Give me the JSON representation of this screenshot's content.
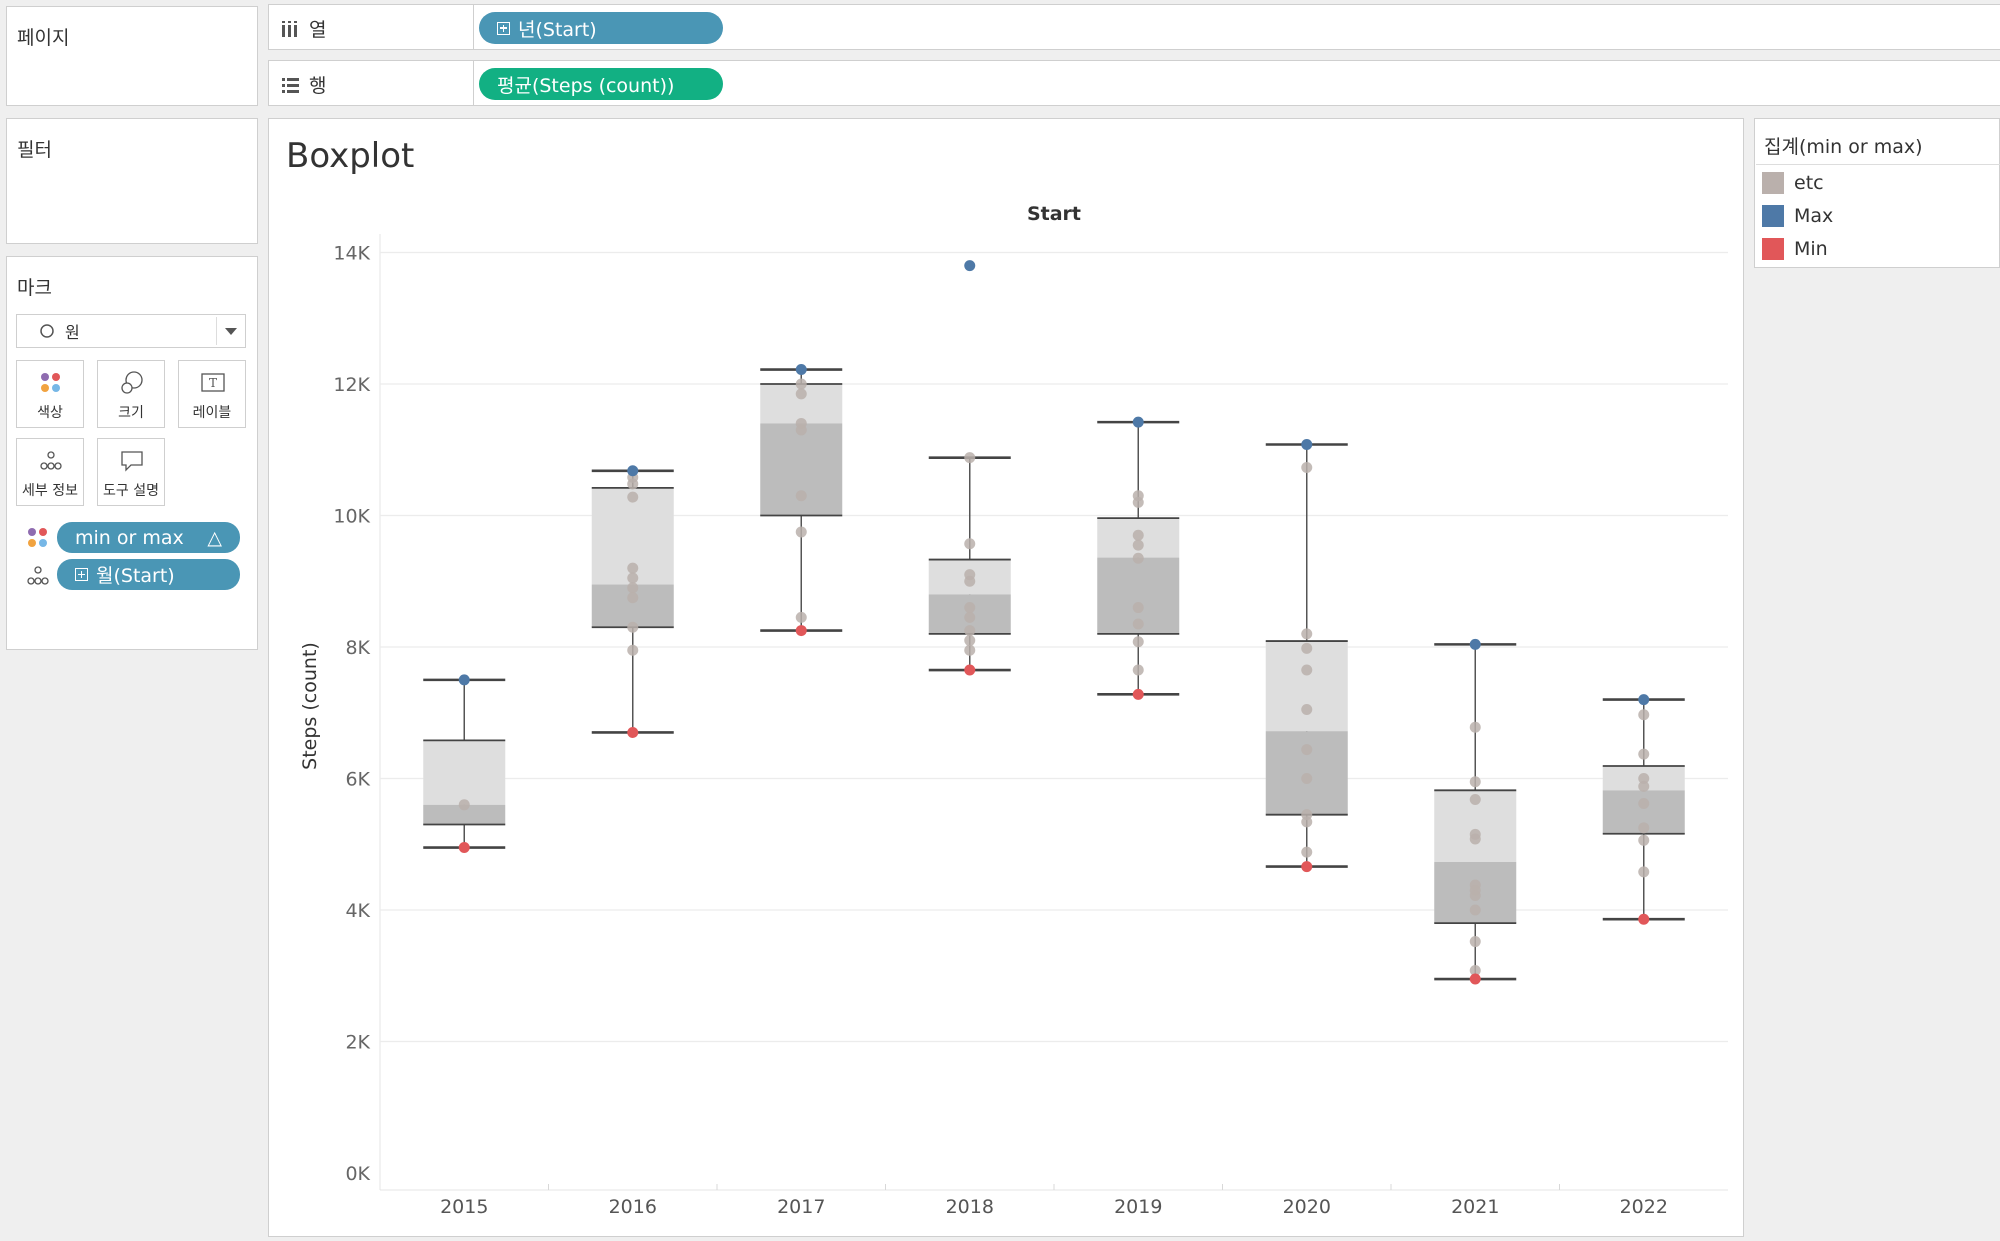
{
  "sidebar": {
    "pages_label": "페이지",
    "filters_label": "필터",
    "marks_label": "마크",
    "mark_type": "원",
    "mark_buttons": [
      {
        "label": "색상",
        "icon": "color-icon"
      },
      {
        "label": "크기",
        "icon": "size-icon"
      },
      {
        "label": "레이블",
        "icon": "label-icon"
      },
      {
        "label": "세부 정보",
        "icon": "detail-icon"
      },
      {
        "label": "도구 설명",
        "icon": "tooltip-icon"
      }
    ],
    "mark_pills": [
      {
        "label": "min or max",
        "suffix": "△",
        "icon": "color-icon"
      },
      {
        "label": "월(Start)",
        "icon": "detail-icon"
      }
    ]
  },
  "shelves": {
    "columns_label": "열",
    "columns_pill": "년(Start)",
    "rows_label": "행",
    "rows_pill": "평균(Steps (count))"
  },
  "legend": {
    "title": "집계(min or max)",
    "items": [
      {
        "label": "etc",
        "color": "#bab0ac"
      },
      {
        "label": "Max",
        "color": "#4e79a7"
      },
      {
        "label": "Min",
        "color": "#e15759"
      }
    ]
  },
  "chart_data": {
    "type": "boxplot",
    "title": "Boxplot",
    "column_header": "Start",
    "xlabel": "",
    "ylabel": "Steps (count)",
    "ylim": [
      0,
      14500
    ],
    "yticks": [
      0,
      2000,
      4000,
      6000,
      8000,
      10000,
      12000,
      14000
    ],
    "ytick_labels": [
      "0K",
      "2K",
      "4K",
      "6K",
      "8K",
      "10K",
      "12K",
      "14K"
    ],
    "categories": [
      "2015",
      "2016",
      "2017",
      "2018",
      "2019",
      "2020",
      "2021",
      "2022"
    ],
    "boxes": [
      {
        "year": "2015",
        "whisker_low": 4950,
        "q1": 5300,
        "median": 5600,
        "q3": 6580,
        "whisker_high": 7500
      },
      {
        "year": "2016",
        "whisker_low": 6700,
        "q1": 8300,
        "median": 8950,
        "q3": 10420,
        "whisker_high": 10680
      },
      {
        "year": "2017",
        "whisker_low": 8250,
        "q1": 10000,
        "median": 11400,
        "q3": 12000,
        "whisker_high": 12220
      },
      {
        "year": "2018",
        "whisker_low": 7650,
        "q1": 8200,
        "median": 8800,
        "q3": 9330,
        "whisker_high": 10880
      },
      {
        "year": "2019",
        "whisker_low": 7280,
        "q1": 8200,
        "median": 9360,
        "q3": 9960,
        "whisker_high": 11420
      },
      {
        "year": "2020",
        "whisker_low": 4660,
        "q1": 5450,
        "median": 6720,
        "q3": 8090,
        "whisker_high": 11080
      },
      {
        "year": "2021",
        "whisker_low": 2950,
        "q1": 3800,
        "median": 4730,
        "q3": 5820,
        "whisker_high": 8040
      },
      {
        "year": "2022",
        "whisker_low": 3860,
        "q1": 5160,
        "median": 5820,
        "q3": 6190,
        "whisker_high": 7200
      }
    ],
    "series": [
      {
        "name": "etc",
        "points": [
          {
            "x": "2015",
            "y": 5600
          },
          {
            "x": "2016",
            "y": 10580
          },
          {
            "x": "2016",
            "y": 10480
          },
          {
            "x": "2016",
            "y": 10280
          },
          {
            "x": "2016",
            "y": 9200
          },
          {
            "x": "2016",
            "y": 9050
          },
          {
            "x": "2016",
            "y": 8900
          },
          {
            "x": "2016",
            "y": 8750
          },
          {
            "x": "2016",
            "y": 8300
          },
          {
            "x": "2016",
            "y": 7950
          },
          {
            "x": "2017",
            "y": 12000
          },
          {
            "x": "2017",
            "y": 11850
          },
          {
            "x": "2017",
            "y": 11400
          },
          {
            "x": "2017",
            "y": 11300
          },
          {
            "x": "2017",
            "y": 10300
          },
          {
            "x": "2017",
            "y": 9750
          },
          {
            "x": "2017",
            "y": 8450
          },
          {
            "x": "2018",
            "y": 10880
          },
          {
            "x": "2018",
            "y": 9570
          },
          {
            "x": "2018",
            "y": 9100
          },
          {
            "x": "2018",
            "y": 9000
          },
          {
            "x": "2018",
            "y": 8600
          },
          {
            "x": "2018",
            "y": 8450
          },
          {
            "x": "2018",
            "y": 8250
          },
          {
            "x": "2018",
            "y": 8100
          },
          {
            "x": "2018",
            "y": 7950
          },
          {
            "x": "2019",
            "y": 10300
          },
          {
            "x": "2019",
            "y": 10200
          },
          {
            "x": "2019",
            "y": 9700
          },
          {
            "x": "2019",
            "y": 9550
          },
          {
            "x": "2019",
            "y": 9350
          },
          {
            "x": "2019",
            "y": 8600
          },
          {
            "x": "2019",
            "y": 8350
          },
          {
            "x": "2019",
            "y": 8080
          },
          {
            "x": "2019",
            "y": 7650
          },
          {
            "x": "2020",
            "y": 10730
          },
          {
            "x": "2020",
            "y": 8200
          },
          {
            "x": "2020",
            "y": 7980
          },
          {
            "x": "2020",
            "y": 7650
          },
          {
            "x": "2020",
            "y": 7050
          },
          {
            "x": "2020",
            "y": 6440
          },
          {
            "x": "2020",
            "y": 6000
          },
          {
            "x": "2020",
            "y": 5450
          },
          {
            "x": "2020",
            "y": 5340
          },
          {
            "x": "2020",
            "y": 4880
          },
          {
            "x": "2021",
            "y": 6780
          },
          {
            "x": "2021",
            "y": 5950
          },
          {
            "x": "2021",
            "y": 5680
          },
          {
            "x": "2021",
            "y": 5150
          },
          {
            "x": "2021",
            "y": 5080
          },
          {
            "x": "2021",
            "y": 4380
          },
          {
            "x": "2021",
            "y": 4300
          },
          {
            "x": "2021",
            "y": 4220
          },
          {
            "x": "2021",
            "y": 4000
          },
          {
            "x": "2021",
            "y": 3520
          },
          {
            "x": "2021",
            "y": 3080
          },
          {
            "x": "2022",
            "y": 6970
          },
          {
            "x": "2022",
            "y": 6370
          },
          {
            "x": "2022",
            "y": 6000
          },
          {
            "x": "2022",
            "y": 5880
          },
          {
            "x": "2022",
            "y": 5620
          },
          {
            "x": "2022",
            "y": 5250
          },
          {
            "x": "2022",
            "y": 5060
          },
          {
            "x": "2022",
            "y": 4580
          }
        ]
      },
      {
        "name": "Max",
        "points": [
          {
            "x": "2015",
            "y": 7500
          },
          {
            "x": "2016",
            "y": 10680
          },
          {
            "x": "2017",
            "y": 12220
          },
          {
            "x": "2018",
            "y": 13800
          },
          {
            "x": "2019",
            "y": 11420
          },
          {
            "x": "2020",
            "y": 11080
          },
          {
            "x": "2021",
            "y": 8040
          },
          {
            "x": "2022",
            "y": 7200
          }
        ]
      },
      {
        "name": "Min",
        "points": [
          {
            "x": "2015",
            "y": 4950
          },
          {
            "x": "2016",
            "y": 6700
          },
          {
            "x": "2017",
            "y": 8250
          },
          {
            "x": "2018",
            "y": 7650
          },
          {
            "x": "2019",
            "y": 7280
          },
          {
            "x": "2020",
            "y": 4660
          },
          {
            "x": "2021",
            "y": 2950
          },
          {
            "x": "2022",
            "y": 3860
          }
        ]
      }
    ]
  }
}
